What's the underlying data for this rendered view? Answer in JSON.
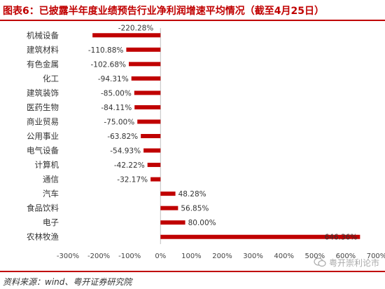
{
  "title": "图表6：已披露半年度业绩预告行业净利润增速平均情况（截至4月25日）",
  "source": "资料来源：wind、粤开证券研究院",
  "watermark": "粤开崇利论市",
  "colors": {
    "bar": "#c00000",
    "title": "#c00000",
    "axis": "#bfbfbf"
  },
  "chart_data": {
    "type": "bar",
    "orientation": "horizontal",
    "title": "图表6：已披露半年度业绩预告行业净利润增速平均情况（截至4月25日）",
    "xlabel": "",
    "ylabel": "",
    "xlim": [
      -300,
      700
    ],
    "x_ticks": [
      "-300%",
      "-200%",
      "-100%",
      "0%",
      "100%",
      "200%",
      "300%",
      "400%",
      "500%",
      "600%",
      "700%"
    ],
    "x_tick_values": [
      -300,
      -200,
      -100,
      0,
      100,
      200,
      300,
      400,
      500,
      600,
      700
    ],
    "grid": false,
    "legend": "none",
    "categories": [
      "机械设备",
      "建筑材料",
      "有色金属",
      "化工",
      "建筑装饰",
      "医药生物",
      "商业贸易",
      "公用事业",
      "电气设备",
      "计算机",
      "通信",
      "汽车",
      "食品饮料",
      "电子",
      "农林牧渔"
    ],
    "values": [
      -220.28,
      -110.88,
      -102.68,
      -94.31,
      -85.0,
      -84.11,
      -75.0,
      -63.82,
      -54.93,
      -42.22,
      -32.17,
      48.28,
      56.85,
      80.0,
      646.36
    ],
    "value_labels": [
      "-220.28%",
      "-110.88%",
      "-102.68%",
      "-94.31%",
      "-85.00%",
      "-84.11%",
      "-75.00%",
      "-63.82%",
      "-54.93%",
      "-42.22%",
      "-32.17%",
      "48.28%",
      "56.85%",
      "80.00%",
      "646.36%"
    ]
  }
}
